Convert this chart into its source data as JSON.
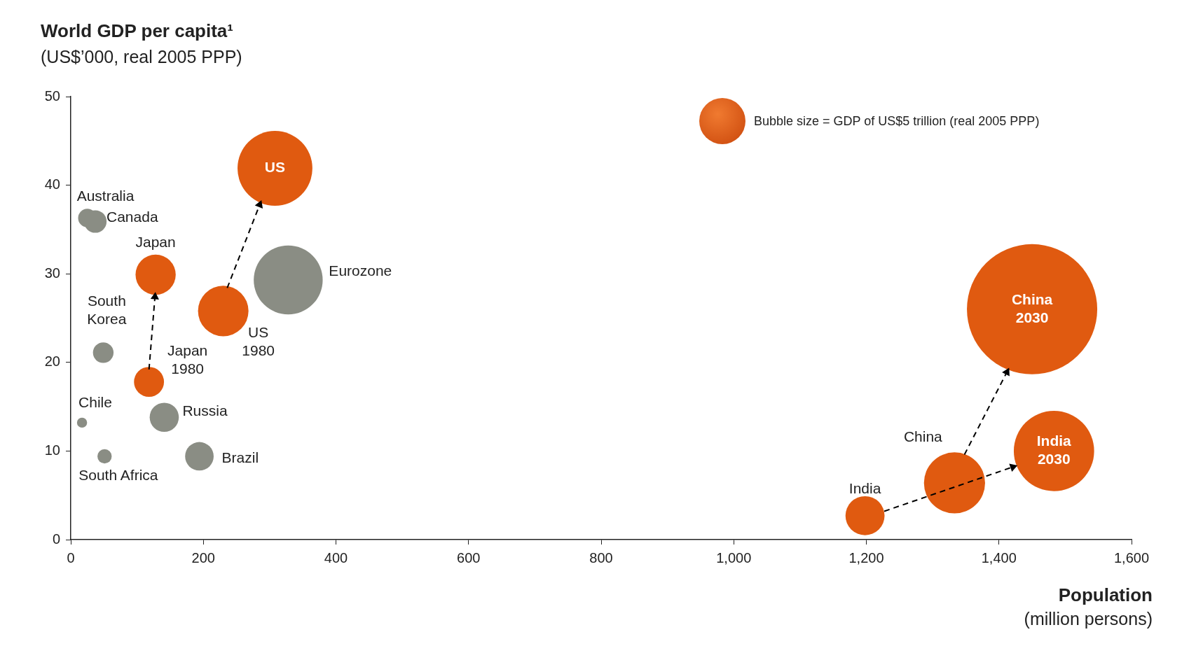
{
  "chart_data": {
    "type": "bubble",
    "title": "World GDP per capita¹",
    "subtitle": "(US$’000, real 2005 PPP)",
    "xlabel": "Population\n(million persons)",
    "grid": false,
    "xlim": [
      0,
      1600
    ],
    "xticks": [
      0,
      200,
      400,
      600,
      800,
      {
        "value": 1000,
        "label": "1,000"
      },
      {
        "value": 1200,
        "label": "1,200"
      },
      {
        "value": 1400,
        "label": "1,400"
      },
      {
        "value": 1600,
        "label": "1,600"
      }
    ],
    "ylim": [
      0,
      50
    ],
    "yticks": [
      0,
      10,
      20,
      30,
      40,
      50
    ],
    "series": [
      {
        "color": "#e05a10",
        "x": [
          308,
          230,
          128,
          118,
          1198,
          1333,
          1450,
          1483
        ],
        "values": [
          41.9,
          25.8,
          29.9,
          17.8,
          2.7,
          6.4,
          26.0,
          10.0
        ],
        "sizes": [
          0.33,
          0.15,
          0.095,
          0.053,
          0.09,
          0.22,
          1,
          0.38
        ]
      },
      {
        "color": "#8a8d84",
        "x": [
          328,
          25,
          37,
          49,
          17,
          141,
          51,
          194
        ],
        "values": [
          29.3,
          36.3,
          35.9,
          21.1,
          13.2,
          13.8,
          9.4,
          9.4
        ],
        "sizes": [
          0.28,
          0.02,
          0.03,
          0.025,
          0.006,
          0.05,
          0.012,
          0.048
        ]
      },
      {
        "type": "line",
        "color": "#000000",
        "line_style": "dashed",
        "marker": "triangle",
        "x": [
          118,
          127
        ],
        "values": [
          19.2,
          27.4
        ]
      },
      {
        "type": "line",
        "color": "#000000",
        "line_style": "dashed",
        "marker": "triangle",
        "x": [
          236,
          285
        ],
        "values": [
          28.4,
          37.8
        ]
      },
      {
        "type": "line",
        "color": "#000000",
        "line_style": "dashed",
        "marker": "triangle",
        "x": [
          1227,
          1421
        ],
        "values": [
          3.2,
          8.2
        ]
      },
      {
        "type": "line",
        "color": "#000000",
        "line_style": "dashed",
        "marker": "triangle",
        "x": [
          1348,
          1412
        ],
        "values": [
          9.6,
          18.9
        ]
      }
    ],
    "annotations": [
      {
        "text": "US",
        "x": 308,
        "y": 41.9
      },
      {
        "text": "US\n1980",
        "x": 230,
        "y": 25.8
      },
      {
        "text": "Japan",
        "x": 128,
        "y": 29.9
      },
      {
        "text": "Japan\n1980",
        "x": 118,
        "y": 17.8
      },
      {
        "text": "India",
        "x": 1198,
        "y": 2.7
      },
      {
        "text": "China",
        "x": 1333,
        "y": 6.4
      },
      {
        "text": "China\n2030",
        "x": 1450,
        "y": 26.0
      },
      {
        "text": "India\n2030",
        "x": 1483,
        "y": 10.0
      },
      {
        "text": "Eurozone",
        "x": 328,
        "y": 29.3
      },
      {
        "text": "Australia",
        "x": 25,
        "y": 36.3
      },
      {
        "text": "Canada",
        "x": 37,
        "y": 35.9
      },
      {
        "text": "South\nKorea",
        "x": 49,
        "y": 21.1
      },
      {
        "text": "Chile",
        "x": 17,
        "y": 13.2
      },
      {
        "text": "Russia",
        "x": 141,
        "y": 13.8
      },
      {
        "text": "South Africa",
        "x": 51,
        "y": 9.4
      },
      {
        "text": "Brazil",
        "x": 194,
        "y": 9.4
      },
      "Bubble size = GDP of US$5 trillion (real 2005 PPP)"
    ]
  }
}
